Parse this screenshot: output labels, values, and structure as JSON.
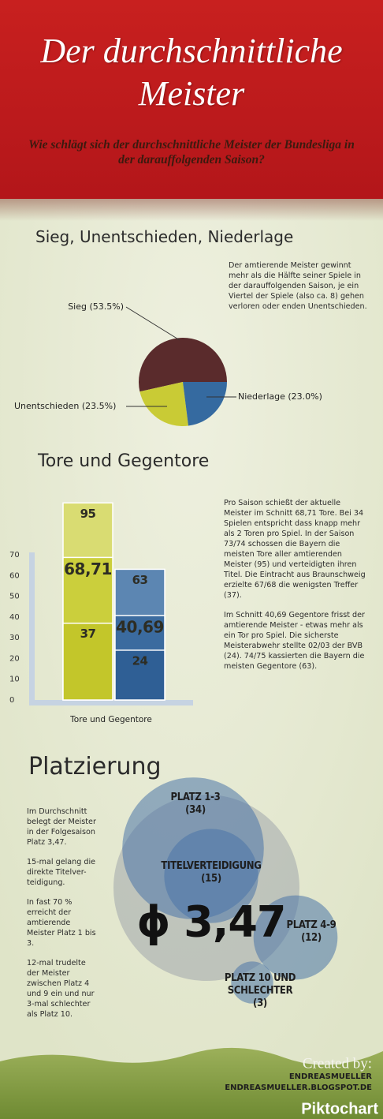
{
  "header": {
    "title": "Der durchschnittliche Meister",
    "subtitle": "Wie schlägt sich der durchschnittliche Meister der Bundesliga in der darauffolgenden Saison?"
  },
  "sections": [
    {
      "heading": "Sieg, Unentschieden, Niederlage",
      "paragraphs": [
        "Der amtierende Meister gewinnt mehr als die Hälfte seiner Spiele in der darauffolgenden Saison, je ein Viertel der Spiele (also ca. 8) gehen verloren oder enden Unentschieden."
      ]
    },
    {
      "heading": "Tore und Gegentore",
      "paragraphs": [
        "Pro Saison schießt der aktuelle Meister im Schnitt 68,71 Tore. Bei 34 Spielen entspricht dass knapp mehr als 2 Toren pro Spiel. In der Saison 73/74 schossen die Bayern die meisten Tore aller amtierenden Meister (95) und verteidigten ihren Titel. Die Eintracht aus Braunschweig erzielte 67/68 die wenigsten Treffer (37).",
        "Im Schnitt 40,69 Gegentore frisst der amtierende Meister - etwas mehr als ein Tor pro Spiel. Die sicherste Meisterabwehr stellte 02/03 der BVB (24). 74/75 kassierten die Bayern die meisten Gegentore (63)."
      ]
    },
    {
      "heading": "Platzierung",
      "paragraphs": [
        "Im Durchschnitt belegt der Meister in der Folgesaison Platz 3,47.",
        "15-mal gelang die direkte Titelver-teidigung.",
        "In fast 70 % erreicht der amtierende Meister Platz 1 bis 3.",
        "12-mal trudelte der Meister zwischen Platz 4 und 9 ein und nur 3-mal schlechter als Platz 10."
      ]
    }
  ],
  "chart_data": [
    {
      "type": "pie",
      "categories": [
        "Sieg (53.5%)",
        "Unentschieden (23.5%)",
        "Niederlage (23.0%)"
      ],
      "values": [
        53.5,
        23.5,
        23.0
      ],
      "colors": [
        "#5a2b2c",
        "#c9cb35",
        "#356aa0"
      ]
    },
    {
      "type": "bar",
      "x_label": "Tore und Gegentore",
      "ylim": [
        0,
        70
      ],
      "yticks": [
        0,
        10,
        20,
        30,
        40,
        50,
        60,
        70
      ],
      "series": [
        {
          "colors": [
            "#c3c62a",
            "#cbcf3c",
            "#d9dc72"
          ],
          "values": [
            37,
            68.71,
            95
          ],
          "value_labels": [
            "37",
            "68,71",
            "95"
          ]
        },
        {
          "colors": [
            "#2f5f95",
            "#3b6b9f",
            "#5c86b2"
          ],
          "values": [
            24,
            40.69,
            63
          ],
          "value_labels": [
            "24",
            "40,69",
            "63"
          ]
        }
      ]
    },
    {
      "type": "bubble",
      "categories": [
        "PLATZ 1-3",
        "TITELVERTEIDIGUNG",
        "PLATZ 4-9",
        "PLATZ 10 UND SCHLECHTER"
      ],
      "values": [
        34,
        15,
        12,
        3
      ],
      "value_labels": [
        "(34)",
        "(15)",
        "(12)",
        "(3)"
      ],
      "color": "#4a74a8",
      "center_label": "ϕ 3,47"
    }
  ],
  "footer": {
    "credit": "Created by:",
    "author": "ENDREASMUELLER",
    "url": "ENDREASMUELLER.BLOGSPOT.DE",
    "brand": "Piktochart"
  }
}
